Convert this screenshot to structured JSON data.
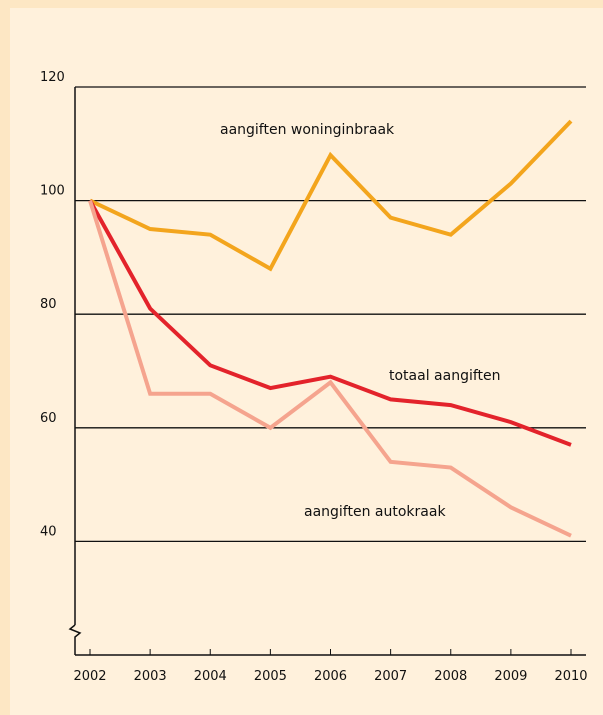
{
  "chart_data": {
    "type": "line",
    "categories": [
      "2002",
      "2003",
      "2004",
      "2005",
      "2006",
      "2007",
      "2008",
      "2009",
      "2010"
    ],
    "series": [
      {
        "name": "aangiften woninginbraak",
        "color": "#f3a51d",
        "values": [
          100,
          95,
          94,
          88,
          108,
          97,
          94,
          103,
          114
        ]
      },
      {
        "name": "totaal aangiften",
        "color": "#e3232b",
        "values": [
          100,
          81,
          71,
          67,
          69,
          65,
          64,
          61,
          57
        ]
      },
      {
        "name": "aangiften autokraak",
        "color": "#f5a48e",
        "values": [
          100,
          66,
          66,
          60,
          68,
          54,
          53,
          46,
          41
        ]
      }
    ],
    "ylim": [
      20,
      120
    ],
    "yticks": [
      40,
      60,
      80,
      100,
      120
    ],
    "grid": true
  }
}
